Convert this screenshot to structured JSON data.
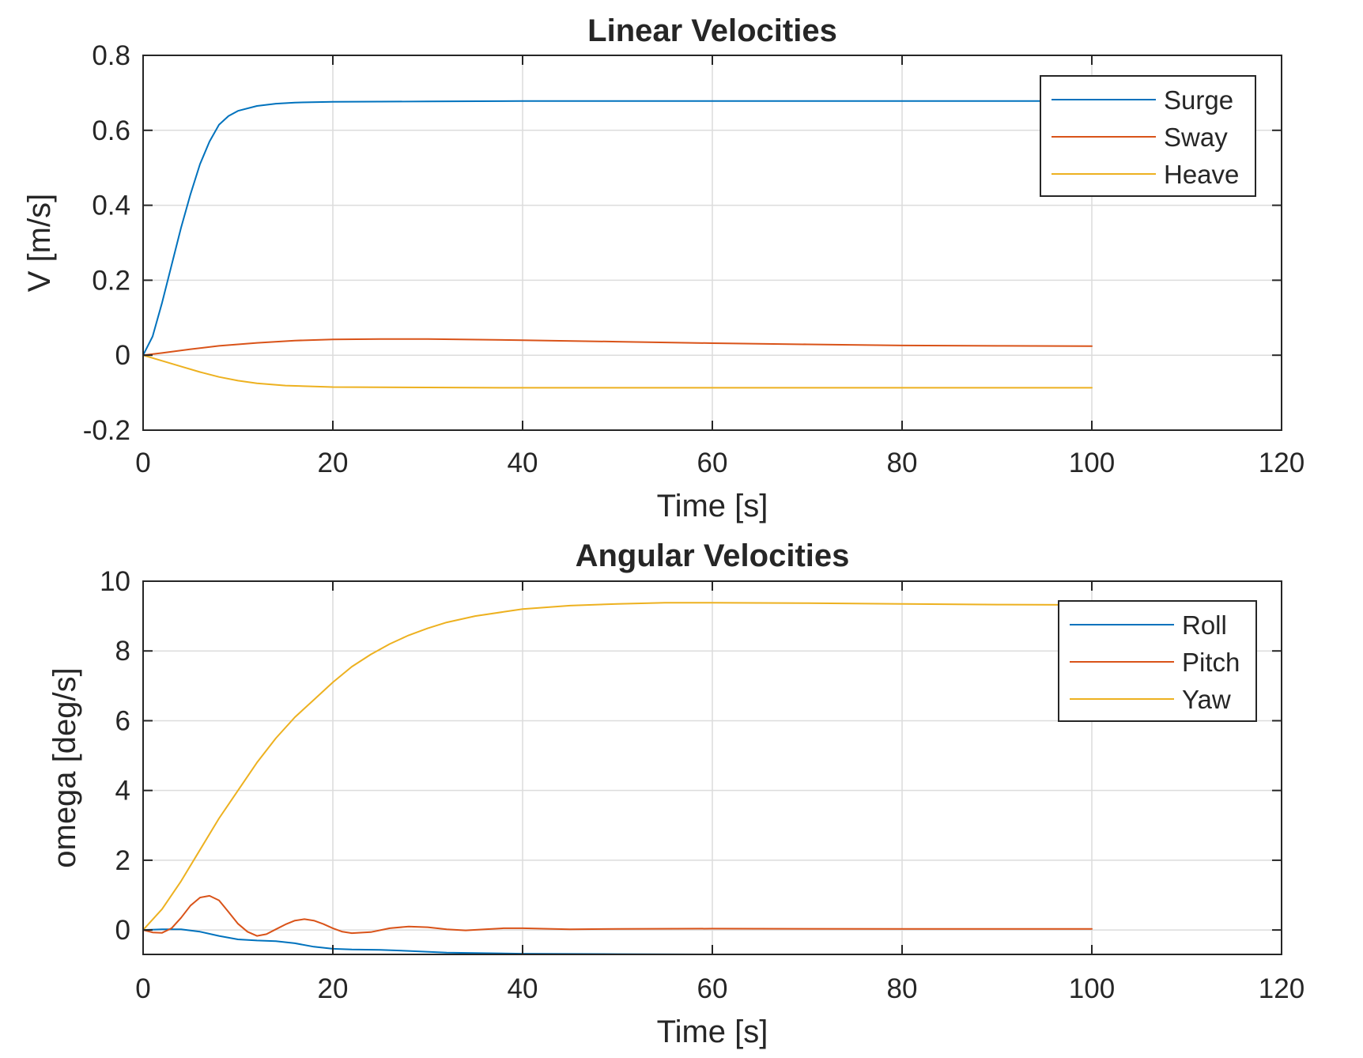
{
  "chart_data": [
    {
      "type": "line",
      "title": "Linear Velocities",
      "xlabel": "Time [s]",
      "ylabel": "V [m/s]",
      "xlim": [
        0,
        120
      ],
      "ylim": [
        -0.2,
        0.8
      ],
      "xticks": [
        "0",
        "20",
        "40",
        "60",
        "80",
        "100",
        "120"
      ],
      "yticks": [
        "-0.2",
        "0",
        "0.2",
        "0.4",
        "0.6",
        "0.8"
      ],
      "grid": true,
      "legend_position": "top-right",
      "series": [
        {
          "name": "Surge",
          "color": "#0072BD",
          "points": [
            [
              0,
              0
            ],
            [
              1,
              0.05
            ],
            [
              2,
              0.14
            ],
            [
              3,
              0.24
            ],
            [
              4,
              0.34
            ],
            [
              5,
              0.43
            ],
            [
              6,
              0.51
            ],
            [
              7,
              0.57
            ],
            [
              8,
              0.615
            ],
            [
              9,
              0.638
            ],
            [
              10,
              0.652
            ],
            [
              12,
              0.665
            ],
            [
              14,
              0.671
            ],
            [
              16,
              0.674
            ],
            [
              20,
              0.676
            ],
            [
              30,
              0.677
            ],
            [
              40,
              0.678
            ],
            [
              50,
              0.678
            ],
            [
              60,
              0.678
            ],
            [
              70,
              0.678
            ],
            [
              80,
              0.678
            ],
            [
              90,
              0.678
            ],
            [
              100,
              0.678
            ]
          ]
        },
        {
          "name": "Sway",
          "color": "#D95319",
          "points": [
            [
              0,
              0
            ],
            [
              2,
              0.006
            ],
            [
              5,
              0.016
            ],
            [
              8,
              0.025
            ],
            [
              12,
              0.033
            ],
            [
              16,
              0.039
            ],
            [
              20,
              0.042
            ],
            [
              25,
              0.043
            ],
            [
              30,
              0.043
            ],
            [
              40,
              0.04
            ],
            [
              50,
              0.036
            ],
            [
              60,
              0.032
            ],
            [
              70,
              0.029
            ],
            [
              80,
              0.026
            ],
            [
              90,
              0.025
            ],
            [
              100,
              0.024
            ]
          ]
        },
        {
          "name": "Heave",
          "color": "#EDB120",
          "points": [
            [
              0,
              0
            ],
            [
              2,
              -0.015
            ],
            [
              4,
              -0.03
            ],
            [
              6,
              -0.045
            ],
            [
              8,
              -0.058
            ],
            [
              10,
              -0.068
            ],
            [
              12,
              -0.075
            ],
            [
              15,
              -0.081
            ],
            [
              20,
              -0.085
            ],
            [
              30,
              -0.086
            ],
            [
              40,
              -0.087
            ],
            [
              60,
              -0.087
            ],
            [
              80,
              -0.087
            ],
            [
              100,
              -0.087
            ]
          ]
        }
      ]
    },
    {
      "type": "line",
      "title": "Angular Velocities",
      "xlabel": "Time [s]",
      "ylabel": "omega [deg/s]",
      "xlim": [
        0,
        120
      ],
      "ylim": [
        -0.7,
        10
      ],
      "xticks": [
        "0",
        "20",
        "40",
        "60",
        "80",
        "100",
        "120"
      ],
      "yticks": [
        "0",
        "2",
        "4",
        "6",
        "8",
        "10"
      ],
      "grid": true,
      "legend_position": "top-right",
      "series": [
        {
          "name": "Roll",
          "color": "#0072BD",
          "points": [
            [
              0,
              0
            ],
            [
              2,
              0.02
            ],
            [
              4,
              0.02
            ],
            [
              6,
              -0.05
            ],
            [
              8,
              -0.17
            ],
            [
              10,
              -0.27
            ],
            [
              12,
              -0.3
            ],
            [
              14,
              -0.32
            ],
            [
              16,
              -0.38
            ],
            [
              18,
              -0.48
            ],
            [
              20,
              -0.54
            ],
            [
              22,
              -0.56
            ],
            [
              25,
              -0.57
            ],
            [
              28,
              -0.6
            ],
            [
              32,
              -0.65
            ],
            [
              40,
              -0.68
            ],
            [
              50,
              -0.69
            ],
            [
              60,
              -0.7
            ],
            [
              80,
              -0.7
            ],
            [
              100,
              -0.7
            ]
          ]
        },
        {
          "name": "Pitch",
          "color": "#D95319",
          "points": [
            [
              0,
              0
            ],
            [
              1,
              -0.07
            ],
            [
              2,
              -0.08
            ],
            [
              3,
              0.05
            ],
            [
              4,
              0.35
            ],
            [
              5,
              0.7
            ],
            [
              6,
              0.93
            ],
            [
              7,
              0.98
            ],
            [
              8,
              0.85
            ],
            [
              9,
              0.52
            ],
            [
              10,
              0.18
            ],
            [
              11,
              -0.05
            ],
            [
              12,
              -0.17
            ],
            [
              13,
              -0.12
            ],
            [
              14,
              0.02
            ],
            [
              15,
              0.16
            ],
            [
              16,
              0.27
            ],
            [
              17,
              0.31
            ],
            [
              18,
              0.27
            ],
            [
              19,
              0.17
            ],
            [
              20,
              0.05
            ],
            [
              21,
              -0.05
            ],
            [
              22,
              -0.09
            ],
            [
              24,
              -0.06
            ],
            [
              26,
              0.05
            ],
            [
              28,
              0.1
            ],
            [
              30,
              0.08
            ],
            [
              32,
              0.02
            ],
            [
              34,
              -0.01
            ],
            [
              36,
              0.02
            ],
            [
              38,
              0.05
            ],
            [
              40,
              0.05
            ],
            [
              45,
              0.02
            ],
            [
              50,
              0.03
            ],
            [
              60,
              0.04
            ],
            [
              80,
              0.03
            ],
            [
              100,
              0.03
            ]
          ]
        },
        {
          "name": "Yaw",
          "color": "#EDB120",
          "points": [
            [
              0,
              0
            ],
            [
              2,
              0.6
            ],
            [
              4,
              1.4
            ],
            [
              6,
              2.3
            ],
            [
              8,
              3.2
            ],
            [
              10,
              4.0
            ],
            [
              12,
              4.8
            ],
            [
              14,
              5.5
            ],
            [
              16,
              6.1
            ],
            [
              18,
              6.6
            ],
            [
              20,
              7.1
            ],
            [
              22,
              7.55
            ],
            [
              24,
              7.9
            ],
            [
              26,
              8.2
            ],
            [
              28,
              8.45
            ],
            [
              30,
              8.65
            ],
            [
              32,
              8.82
            ],
            [
              35,
              9.0
            ],
            [
              38,
              9.12
            ],
            [
              40,
              9.2
            ],
            [
              45,
              9.3
            ],
            [
              50,
              9.35
            ],
            [
              55,
              9.38
            ],
            [
              60,
              9.38
            ],
            [
              70,
              9.37
            ],
            [
              80,
              9.35
            ],
            [
              90,
              9.33
            ],
            [
              100,
              9.32
            ]
          ]
        }
      ]
    }
  ]
}
